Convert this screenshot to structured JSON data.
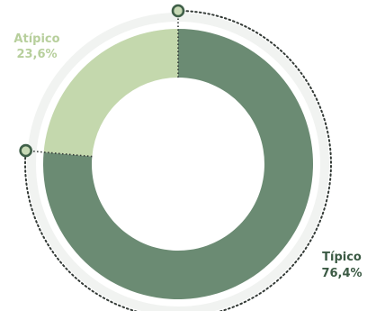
{
  "chart_data": {
    "type": "pie",
    "style": "donut",
    "categories": [
      "Típico",
      "Atípico"
    ],
    "values": [
      76.4,
      23.6
    ],
    "value_labels": [
      "76,4%",
      "23,6%"
    ],
    "title": "",
    "legend": "none",
    "colors": {
      "Típico": "#6b8b73",
      "Atípico": "#c4d8ad",
      "track": "#f1f3f1",
      "leader": "#333a36",
      "marker_fill": "#c7d9b5",
      "marker_stroke": "#3f5f48",
      "label_tipico": "#3b5a44",
      "label_atipico": "#b7cf9c"
    }
  }
}
